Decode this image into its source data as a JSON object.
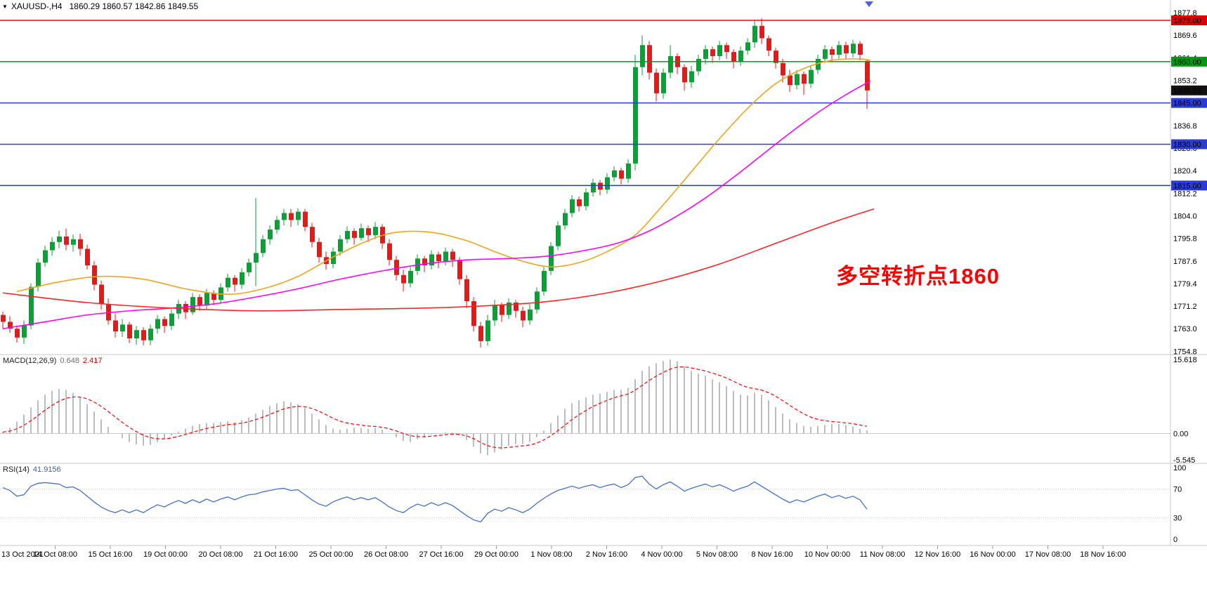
{
  "header": {
    "symbol_period": "XAUUSD-,H4",
    "ohlc_values": "1860.29 1860.57 1842.86 1849.55"
  },
  "annotation": {
    "text": "多空转折点1860",
    "color": "#FF0000"
  },
  "indicators": {
    "macd": {
      "label": "MACD(12,26,9)",
      "value_main": "0.648",
      "value_signal": "2.417",
      "axis_labels": [
        "15.618",
        "0.00",
        "-5.545"
      ]
    },
    "rsi": {
      "label": "RSI(14)",
      "value": "41.9156",
      "axis_labels": [
        "100",
        "70",
        "30",
        "0"
      ],
      "levels": [
        70,
        30
      ]
    }
  },
  "price_axis": {
    "tick_labels": [
      "1877.8",
      "1869.6",
      "1861.4",
      "1853.2",
      "1845.0",
      "1836.8",
      "1828.6",
      "1820.4",
      "1812.2",
      "1804.0",
      "1795.8",
      "1787.6",
      "1779.4",
      "1771.2",
      "1763.0",
      "1754.8"
    ],
    "badges": [
      {
        "label": "1875.00",
        "price": 1875.0,
        "color": "#de0000"
      },
      {
        "label": "1860.00",
        "price": 1860.0,
        "color": "#009a12"
      },
      {
        "label": "1849.55",
        "price": 1849.55,
        "color": "#111111"
      },
      {
        "label": "1845.00",
        "price": 1845.0,
        "color": "#2a3bd8"
      },
      {
        "label": "1830.00",
        "price": 1830.0,
        "color": "#2a3bd8"
      },
      {
        "label": "1815.00",
        "price": 1815.0,
        "color": "#2a3bd8"
      }
    ]
  },
  "time_axis": {
    "labels": [
      "13 Oct 2021",
      "14 Oct 08:00",
      "15 Oct 16:00",
      "19 Oct 00:00",
      "20 Oct 08:00",
      "21 Oct 16:00",
      "25 Oct 00:00",
      "26 Oct 08:00",
      "27 Oct 16:00",
      "29 Oct 00:00",
      "1 Nov 08:00",
      "2 Nov 16:00",
      "4 Nov 00:00",
      "5 Nov 08:00",
      "8 Nov 16:00",
      "10 Nov 00:00",
      "11 Nov 08:00",
      "12 Nov 16:00",
      "16 Nov 00:00",
      "17 Nov 08:00",
      "18 Nov 16:00"
    ]
  },
  "hlines": [
    {
      "price": 1875.0,
      "color": "#ff0000"
    },
    {
      "price": 1860.0,
      "color": "#00a013"
    },
    {
      "price": 1845.0,
      "color": "#2a3bd8"
    },
    {
      "price": 1830.0,
      "color": "#2a3bd8"
    },
    {
      "price": 1815.0,
      "color": "#2a3bd8"
    }
  ],
  "colors": {
    "up": "#00a432",
    "down": "#ee1515",
    "ma_orange": "#efa51b",
    "ma_magenta": "#ff00ff",
    "ma_red": "#ff2222",
    "macd_hist": "#bdbdbd",
    "macd_signal": "#ff0000",
    "macd_zero": "#c8c8c8",
    "rsi_line": "#4070d0",
    "rsi_levels": "#c8c8c8",
    "separator": "#c8c8c8",
    "tick": "#999999",
    "axis_text": "#000000"
  },
  "chart_data": {
    "type": "candlestick",
    "symbol": "XAUUSD-",
    "timeframe": "H4",
    "title": "XAUUSD-,H4 1860.29 1860.57 1842.86 1849.55",
    "current_bar": {
      "open": 1860.29,
      "high": 1860.57,
      "low": 1842.86,
      "close": 1849.55
    },
    "visible_price_range": [
      1753.6,
      1877.8
    ],
    "candles_ohlc": [
      [
        1768.0,
        1769.2,
        1763.0,
        1765.5
      ],
      [
        1765.5,
        1767.5,
        1761.5,
        1763.0
      ],
      [
        1763.0,
        1764.2,
        1758.0,
        1759.8
      ],
      [
        1759.8,
        1766.0,
        1757.5,
        1764.2
      ],
      [
        1764.2,
        1779.5,
        1762.8,
        1778.2
      ],
      [
        1778.2,
        1788.5,
        1776.5,
        1787.0
      ],
      [
        1787.0,
        1793.2,
        1785.5,
        1791.5
      ],
      [
        1791.5,
        1796.2,
        1789.5,
        1794.5
      ],
      [
        1794.5,
        1798.6,
        1792.2,
        1796.5
      ],
      [
        1796.5,
        1799.4,
        1791.5,
        1793.5
      ],
      [
        1793.5,
        1797.2,
        1791.0,
        1795.5
      ],
      [
        1795.5,
        1797.5,
        1789.5,
        1792.0
      ],
      [
        1792.0,
        1793.5,
        1784.5,
        1786.0
      ],
      [
        1786.0,
        1787.5,
        1777.0,
        1779.0
      ],
      [
        1779.0,
        1780.5,
        1770.0,
        1772.0
      ],
      [
        1772.0,
        1774.0,
        1764.5,
        1766.0
      ],
      [
        1766.0,
        1768.5,
        1759.8,
        1762.0
      ],
      [
        1762.0,
        1766.5,
        1760.0,
        1764.5
      ],
      [
        1764.5,
        1765.5,
        1757.8,
        1759.5
      ],
      [
        1759.5,
        1764.0,
        1757.2,
        1762.5
      ],
      [
        1762.5,
        1763.5,
        1757.0,
        1758.8
      ],
      [
        1758.8,
        1764.5,
        1757.0,
        1763.0
      ],
      [
        1763.0,
        1768.0,
        1761.2,
        1766.5
      ],
      [
        1766.5,
        1767.5,
        1761.5,
        1764.0
      ],
      [
        1764.0,
        1770.0,
        1762.5,
        1768.5
      ],
      [
        1768.5,
        1773.5,
        1766.5,
        1772.0
      ],
      [
        1772.0,
        1773.0,
        1766.5,
        1769.0
      ],
      [
        1769.0,
        1776.0,
        1768.0,
        1774.5
      ],
      [
        1774.5,
        1775.5,
        1769.5,
        1771.5
      ],
      [
        1771.5,
        1777.5,
        1770.0,
        1776.0
      ],
      [
        1776.0,
        1777.0,
        1771.5,
        1773.5
      ],
      [
        1773.5,
        1779.5,
        1772.0,
        1778.0
      ],
      [
        1778.0,
        1783.0,
        1776.5,
        1781.5
      ],
      [
        1781.5,
        1782.5,
        1776.5,
        1779.0
      ],
      [
        1779.0,
        1785.0,
        1777.5,
        1783.5
      ],
      [
        1783.5,
        1788.5,
        1782.0,
        1787.0
      ],
      [
        1787.0,
        1810.5,
        1778.5,
        1790.5
      ],
      [
        1790.5,
        1797.0,
        1789.0,
        1795.5
      ],
      [
        1795.5,
        1800.5,
        1793.5,
        1799.0
      ],
      [
        1799.0,
        1804.0,
        1797.5,
        1802.5
      ],
      [
        1802.5,
        1806.5,
        1800.5,
        1805.0
      ],
      [
        1805.0,
        1806.5,
        1800.0,
        1802.5
      ],
      [
        1802.5,
        1806.8,
        1800.5,
        1805.5
      ],
      [
        1805.5,
        1806.5,
        1798.5,
        1800.0
      ],
      [
        1800.0,
        1801.5,
        1792.5,
        1794.5
      ],
      [
        1794.5,
        1796.0,
        1787.0,
        1789.0
      ],
      [
        1789.0,
        1791.0,
        1784.5,
        1786.5
      ],
      [
        1786.5,
        1792.5,
        1785.0,
        1791.0
      ],
      [
        1791.0,
        1797.0,
        1789.5,
        1795.5
      ],
      [
        1795.5,
        1800.2,
        1794.0,
        1798.5
      ],
      [
        1798.5,
        1799.5,
        1793.5,
        1796.0
      ],
      [
        1796.0,
        1801.2,
        1795.0,
        1799.5
      ],
      [
        1799.5,
        1800.5,
        1794.5,
        1797.0
      ],
      [
        1797.0,
        1801.8,
        1795.5,
        1800.0
      ],
      [
        1800.0,
        1801.0,
        1792.0,
        1794.0
      ],
      [
        1794.0,
        1795.5,
        1786.0,
        1788.0
      ],
      [
        1788.0,
        1789.5,
        1780.5,
        1782.5
      ],
      [
        1782.5,
        1784.5,
        1776.5,
        1779.5
      ],
      [
        1779.5,
        1785.5,
        1778.0,
        1784.0
      ],
      [
        1784.0,
        1790.0,
        1782.5,
        1788.5
      ],
      [
        1788.5,
        1789.5,
        1783.5,
        1786.0
      ],
      [
        1786.0,
        1791.5,
        1784.5,
        1790.0
      ],
      [
        1790.0,
        1791.0,
        1785.0,
        1787.5
      ],
      [
        1787.5,
        1792.5,
        1786.0,
        1791.0
      ],
      [
        1791.0,
        1792.0,
        1785.5,
        1788.0
      ],
      [
        1788.0,
        1789.0,
        1779.0,
        1781.0
      ],
      [
        1781.0,
        1782.5,
        1770.5,
        1773.0
      ],
      [
        1773.0,
        1774.5,
        1762.0,
        1764.0
      ],
      [
        1764.0,
        1765.5,
        1756.2,
        1758.5
      ],
      [
        1758.5,
        1768.0,
        1756.8,
        1766.0
      ],
      [
        1766.0,
        1773.5,
        1764.0,
        1771.5
      ],
      [
        1771.5,
        1772.5,
        1765.5,
        1768.0
      ],
      [
        1768.0,
        1774.0,
        1766.5,
        1772.5
      ],
      [
        1772.5,
        1773.5,
        1767.0,
        1769.5
      ],
      [
        1769.5,
        1771.0,
        1763.5,
        1766.0
      ],
      [
        1766.0,
        1772.0,
        1764.5,
        1770.0
      ],
      [
        1770.0,
        1778.0,
        1768.5,
        1776.5
      ],
      [
        1776.5,
        1785.5,
        1775.0,
        1784.0
      ],
      [
        1784.0,
        1794.5,
        1782.5,
        1793.0
      ],
      [
        1793.0,
        1802.0,
        1791.5,
        1800.5
      ],
      [
        1800.5,
        1806.5,
        1799.0,
        1805.0
      ],
      [
        1805.0,
        1811.5,
        1803.5,
        1810.0
      ],
      [
        1810.0,
        1811.0,
        1805.5,
        1807.5
      ],
      [
        1807.5,
        1814.0,
        1806.0,
        1812.5
      ],
      [
        1812.5,
        1817.5,
        1811.0,
        1816.0
      ],
      [
        1816.0,
        1817.0,
        1811.5,
        1813.5
      ],
      [
        1813.5,
        1819.5,
        1812.0,
        1818.0
      ],
      [
        1818.0,
        1822.0,
        1816.5,
        1820.5
      ],
      [
        1820.5,
        1821.5,
        1815.5,
        1817.5
      ],
      [
        1817.5,
        1824.5,
        1816.0,
        1823.0
      ],
      [
        1823.0,
        1862.5,
        1820.5,
        1858.0
      ],
      [
        1858.0,
        1869.5,
        1855.0,
        1866.0
      ],
      [
        1866.0,
        1867.5,
        1853.5,
        1856.0
      ],
      [
        1856.0,
        1857.5,
        1845.5,
        1848.5
      ],
      [
        1848.5,
        1857.5,
        1846.5,
        1856.0
      ],
      [
        1856.0,
        1866.0,
        1854.0,
        1862.0
      ],
      [
        1862.0,
        1863.0,
        1855.5,
        1858.0
      ],
      [
        1858.0,
        1859.0,
        1849.5,
        1852.5
      ],
      [
        1852.5,
        1858.5,
        1850.5,
        1856.5
      ],
      [
        1856.5,
        1862.5,
        1855.0,
        1861.0
      ],
      [
        1861.0,
        1866.0,
        1859.0,
        1864.5
      ],
      [
        1864.5,
        1865.5,
        1859.5,
        1862.0
      ],
      [
        1862.0,
        1867.5,
        1860.5,
        1866.0
      ],
      [
        1866.0,
        1867.0,
        1861.0,
        1863.5
      ],
      [
        1863.5,
        1864.5,
        1857.5,
        1860.0
      ],
      [
        1860.0,
        1865.5,
        1858.5,
        1864.0
      ],
      [
        1864.0,
        1868.5,
        1862.5,
        1867.0
      ],
      [
        1867.0,
        1875.2,
        1865.0,
        1873.0
      ],
      [
        1873.0,
        1875.8,
        1866.5,
        1868.5
      ],
      [
        1868.5,
        1869.5,
        1862.0,
        1864.0
      ],
      [
        1864.0,
        1865.0,
        1857.5,
        1859.5
      ],
      [
        1859.5,
        1861.0,
        1852.5,
        1855.0
      ],
      [
        1855.0,
        1857.0,
        1849.0,
        1851.5
      ],
      [
        1851.5,
        1857.0,
        1850.0,
        1855.5
      ],
      [
        1855.5,
        1856.5,
        1848.0,
        1852.0
      ],
      [
        1852.0,
        1858.5,
        1850.5,
        1857.0
      ],
      [
        1857.0,
        1862.5,
        1855.5,
        1861.0
      ],
      [
        1861.0,
        1866.0,
        1859.5,
        1864.5
      ],
      [
        1864.5,
        1865.5,
        1860.0,
        1862.5
      ],
      [
        1862.5,
        1867.5,
        1861.0,
        1866.0
      ],
      [
        1866.0,
        1867.2,
        1861.0,
        1863.0
      ],
      [
        1863.0,
        1868.0,
        1861.5,
        1866.5
      ],
      [
        1866.5,
        1867.5,
        1860.5,
        1862.5
      ],
      [
        1860.29,
        1860.57,
        1842.86,
        1849.55
      ]
    ],
    "ma_curves": {
      "orange": [
        [
          2,
          1776.5
        ],
        [
          8,
          1780
        ],
        [
          14,
          1782
        ],
        [
          20,
          1781
        ],
        [
          26,
          1777.5
        ],
        [
          32,
          1775.5
        ],
        [
          37,
          1777.5
        ],
        [
          42,
          1782
        ],
        [
          47,
          1789
        ],
        [
          52,
          1795
        ],
        [
          56,
          1798
        ],
        [
          61,
          1798
        ],
        [
          66,
          1795
        ],
        [
          70,
          1791
        ],
        [
          74,
          1787.5
        ],
        [
          78,
          1785.5
        ],
        [
          82,
          1787
        ],
        [
          86,
          1791
        ],
        [
          90,
          1797
        ],
        [
          94,
          1808
        ],
        [
          98,
          1820
        ],
        [
          102,
          1832
        ],
        [
          106,
          1843
        ],
        [
          110,
          1852
        ],
        [
          114,
          1857.5
        ],
        [
          118,
          1860.5
        ],
        [
          122,
          1861
        ],
        [
          123.5,
          1860.5
        ]
      ],
      "magenta": [
        [
          0,
          1763
        ],
        [
          6,
          1765.5
        ],
        [
          12,
          1768
        ],
        [
          18,
          1769.5
        ],
        [
          24,
          1770.5
        ],
        [
          30,
          1772
        ],
        [
          36,
          1774.5
        ],
        [
          42,
          1777.5
        ],
        [
          48,
          1781
        ],
        [
          54,
          1784
        ],
        [
          60,
          1786.5
        ],
        [
          66,
          1788
        ],
        [
          72,
          1788.5
        ],
        [
          78,
          1789.5
        ],
        [
          84,
          1792
        ],
        [
          88,
          1794.5
        ],
        [
          92,
          1798.5
        ],
        [
          96,
          1804
        ],
        [
          100,
          1810.5
        ],
        [
          104,
          1818
        ],
        [
          108,
          1826
        ],
        [
          112,
          1834
        ],
        [
          116,
          1841.5
        ],
        [
          120,
          1848
        ],
        [
          123.5,
          1853
        ]
      ],
      "red": [
        [
          0,
          1776
        ],
        [
          12,
          1772.5
        ],
        [
          24,
          1770.5
        ],
        [
          36,
          1769.5
        ],
        [
          48,
          1770
        ],
        [
          60,
          1770.5
        ],
        [
          70,
          1771.5
        ],
        [
          78,
          1773
        ],
        [
          86,
          1776
        ],
        [
          94,
          1780.5
        ],
        [
          102,
          1786.5
        ],
        [
          110,
          1794
        ],
        [
          118,
          1801.5
        ],
        [
          124,
          1806.5
        ]
      ]
    },
    "macd": {
      "histogram": [
        0.3,
        1.2,
        2.5,
        4.0,
        5.5,
        7.0,
        8.2,
        9.0,
        9.4,
        9.2,
        8.6,
        7.6,
        6.2,
        4.6,
        3.0,
        1.4,
        0.0,
        -1.0,
        -1.8,
        -2.3,
        -2.6,
        -2.4,
        -1.8,
        -1.2,
        -0.4,
        0.4,
        1.0,
        1.6,
        2.0,
        2.2,
        2.2,
        2.4,
        2.6,
        2.4,
        2.8,
        3.4,
        4.2,
        5.0,
        5.8,
        6.4,
        6.8,
        6.6,
        6.2,
        5.4,
        4.2,
        3.0,
        1.8,
        1.0,
        0.8,
        1.0,
        1.2,
        1.2,
        1.0,
        1.2,
        0.8,
        0.0,
        -0.8,
        -1.6,
        -1.8,
        -1.2,
        -0.8,
        -0.2,
        0.0,
        0.2,
        0.2,
        -0.4,
        -1.4,
        -2.8,
        -4.2,
        -4.6,
        -4.0,
        -3.4,
        -2.6,
        -2.2,
        -2.2,
        -1.8,
        -0.8,
        0.6,
        2.2,
        3.8,
        5.2,
        6.4,
        7.0,
        7.6,
        8.2,
        8.4,
        8.8,
        9.2,
        9.2,
        9.6,
        11.5,
        13.2,
        14.2,
        14.8,
        15.3,
        15.6,
        15.2,
        14.2,
        13.2,
        12.6,
        12.2,
        11.4,
        10.8,
        10.0,
        9.0,
        8.2,
        8.0,
        8.6,
        8.2,
        7.0,
        5.6,
        4.2,
        3.0,
        2.2,
        1.6,
        1.4,
        1.6,
        1.8,
        2.0,
        2.0,
        1.8,
        1.5,
        1.0,
        0.648
      ],
      "signal_ema_alpha": 0.25,
      "axis_range": [
        -5.545,
        15.618
      ],
      "last_values": [
        0.648,
        2.417
      ]
    },
    "rsi": {
      "values": [
        72,
        68,
        60,
        62,
        74,
        78,
        79,
        78,
        77,
        72,
        73,
        68,
        60,
        52,
        45,
        40,
        37,
        41,
        37,
        41,
        37,
        43,
        48,
        45,
        50,
        54,
        50,
        55,
        51,
        56,
        52,
        56,
        59,
        55,
        59,
        62,
        63,
        66,
        68,
        70,
        71,
        68,
        69,
        62,
        55,
        49,
        46,
        52,
        56,
        59,
        55,
        58,
        55,
        58,
        52,
        45,
        40,
        37,
        44,
        49,
        46,
        51,
        47,
        51,
        47,
        40,
        33,
        27,
        24,
        36,
        42,
        39,
        44,
        41,
        37,
        42,
        50,
        57,
        63,
        68,
        71,
        74,
        71,
        74,
        76,
        72,
        75,
        77,
        72,
        76,
        86,
        88,
        77,
        70,
        76,
        80,
        74,
        67,
        71,
        74,
        77,
        73,
        76,
        72,
        67,
        71,
        74,
        80,
        74,
        68,
        62,
        56,
        51,
        55,
        52,
        56,
        60,
        63,
        58,
        61,
        57,
        60,
        55,
        41.9
      ],
      "last_value": 41.9156,
      "levels": [
        70,
        30
      ]
    }
  }
}
